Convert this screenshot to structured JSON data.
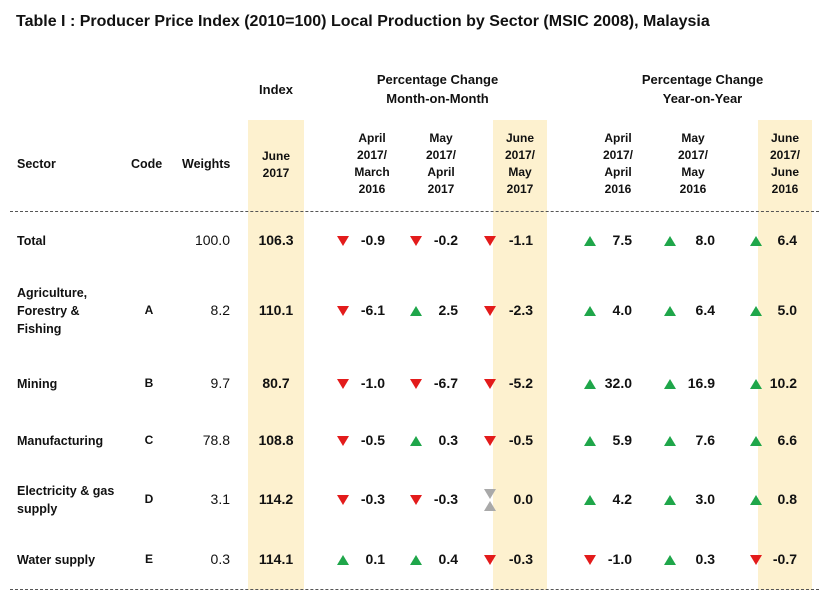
{
  "title": "Table I : Producer Price Index (2010=100) Local Production by Sector (MSIC 2008), Malaysia",
  "headers": {
    "index": "Index",
    "mom_line1": "Percentage Change",
    "mom_line2": "Month-on-Month",
    "yoy_line1": "Percentage Change",
    "yoy_line2": "Year-on-Year",
    "sector": "Sector",
    "code": "Code",
    "weights": "Weights",
    "index_period": [
      "June",
      "2017"
    ],
    "mom_cols": [
      [
        "April",
        "2017/",
        "March",
        "2016"
      ],
      [
        "May",
        "2017/",
        "April",
        "2017"
      ],
      [
        "June",
        "2017/",
        "May",
        "2017"
      ]
    ],
    "yoy_cols": [
      [
        "April",
        "2017/",
        "April",
        "2016"
      ],
      [
        "May",
        "2017/",
        "May",
        "2016"
      ],
      [
        "June",
        "2017/",
        "June",
        "2016"
      ]
    ]
  },
  "rows": [
    {
      "sector": [
        "Total"
      ],
      "code": "",
      "weight": "100.0",
      "index": "106.3",
      "mom": [
        {
          "v": "-0.9",
          "d": "down"
        },
        {
          "v": "-0.2",
          "d": "down"
        },
        {
          "v": "-1.1",
          "d": "down"
        }
      ],
      "yoy": [
        {
          "v": "7.5",
          "d": "up"
        },
        {
          "v": "8.0",
          "d": "up"
        },
        {
          "v": "6.4",
          "d": "up"
        }
      ]
    },
    {
      "sector": [
        "Agriculture,",
        "Forestry &",
        "Fishing"
      ],
      "code": "A",
      "weight": "8.2",
      "index": "110.1",
      "mom": [
        {
          "v": "-6.1",
          "d": "down"
        },
        {
          "v": "2.5",
          "d": "up"
        },
        {
          "v": "-2.3",
          "d": "down"
        }
      ],
      "yoy": [
        {
          "v": "4.0",
          "d": "up"
        },
        {
          "v": "6.4",
          "d": "up"
        },
        {
          "v": "5.0",
          "d": "up"
        }
      ]
    },
    {
      "sector": [
        "Mining"
      ],
      "code": "B",
      "weight": "9.7",
      "index": "80.7",
      "mom": [
        {
          "v": "-1.0",
          "d": "down"
        },
        {
          "v": "-6.7",
          "d": "down"
        },
        {
          "v": "-5.2",
          "d": "down"
        }
      ],
      "yoy": [
        {
          "v": "32.0",
          "d": "up"
        },
        {
          "v": "16.9",
          "d": "up"
        },
        {
          "v": "10.2",
          "d": "up"
        }
      ]
    },
    {
      "sector": [
        "Manufacturing"
      ],
      "code": "C",
      "weight": "78.8",
      "index": "108.8",
      "mom": [
        {
          "v": "-0.5",
          "d": "down"
        },
        {
          "v": "0.3",
          "d": "up"
        },
        {
          "v": "-0.5",
          "d": "down"
        }
      ],
      "yoy": [
        {
          "v": "5.9",
          "d": "up"
        },
        {
          "v": "7.6",
          "d": "up"
        },
        {
          "v": "6.6",
          "d": "up"
        }
      ]
    },
    {
      "sector": [
        "Electricity  & gas",
        "supply"
      ],
      "code": "D",
      "weight": "3.1",
      "index": "114.2",
      "mom": [
        {
          "v": "-0.3",
          "d": "down"
        },
        {
          "v": "-0.3",
          "d": "down"
        },
        {
          "v": "0.0",
          "d": "none"
        }
      ],
      "yoy": [
        {
          "v": "4.2",
          "d": "up"
        },
        {
          "v": "3.0",
          "d": "up"
        },
        {
          "v": "0.8",
          "d": "up"
        }
      ]
    },
    {
      "sector": [
        "Water supply"
      ],
      "code": "E",
      "weight": "0.3",
      "index": "114.1",
      "mom": [
        {
          "v": "0.1",
          "d": "up"
        },
        {
          "v": "0.4",
          "d": "up"
        },
        {
          "v": "-0.3",
          "d": "down"
        }
      ],
      "yoy": [
        {
          "v": "-1.0",
          "d": "down"
        },
        {
          "v": "0.3",
          "d": "up"
        },
        {
          "v": "-0.7",
          "d": "down"
        }
      ]
    }
  ],
  "colors": {
    "up": "#1fa64a",
    "down": "#e31b1b",
    "unchanged": "#a9a9a9",
    "highlight": "#fdf1cf"
  }
}
